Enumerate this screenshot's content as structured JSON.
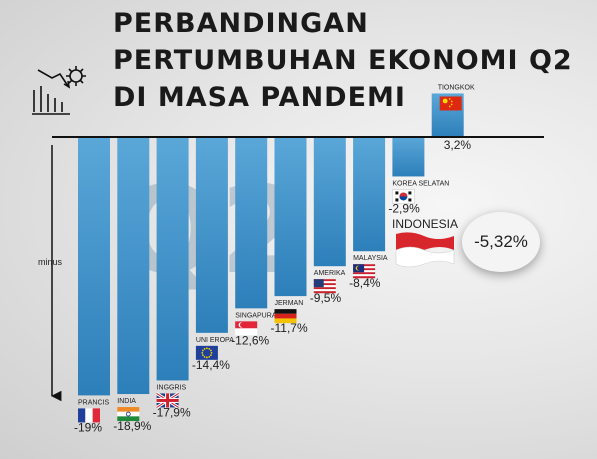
{
  "title_lines": [
    "PERBANDINGAN",
    "PERTUMBUHAN EKONOMI Q2",
    "DI MASA PANDEMI"
  ],
  "axis_note": "minus",
  "watermark": "Q2",
  "indonesia": {
    "name": "INDONESIA",
    "value_label": "-5,32%",
    "value": -5.32
  },
  "chart_data": {
    "type": "bar",
    "title": "PERBANDINGAN PERTUMBUHAN EKONOMI Q2 DI MASA PANDEMI",
    "ylabel": "minus",
    "categories": [
      "PRANCIS",
      "INDIA",
      "INGGRIS",
      "UNI EROPA",
      "SINGAPURA",
      "JERMAN",
      "AMERIKA",
      "MALAYSIA",
      "KOREA SELATAN",
      "TIONGKOK"
    ],
    "values": [
      -19,
      -18.9,
      -17.9,
      -14.4,
      -12.6,
      -11.7,
      -9.5,
      -8.4,
      -2.9,
      3.2
    ],
    "value_labels": [
      "-19%",
      "-18,9%",
      "-17,9%",
      "-14,4%",
      "-12,6%",
      "-11,7%",
      "-9,5%",
      "-8,4%",
      "-2,9%",
      "3,2%"
    ],
    "flags": [
      "france",
      "india",
      "uk",
      "eu",
      "singapore",
      "germany",
      "usa",
      "malaysia",
      "south-korea",
      "china"
    ],
    "ylim": [
      -19,
      3.2
    ],
    "colors": {
      "bar_top": "#5aa7d8",
      "bar_bottom": "#2d7fba",
      "axis": "#111111",
      "text": "#222222"
    }
  }
}
